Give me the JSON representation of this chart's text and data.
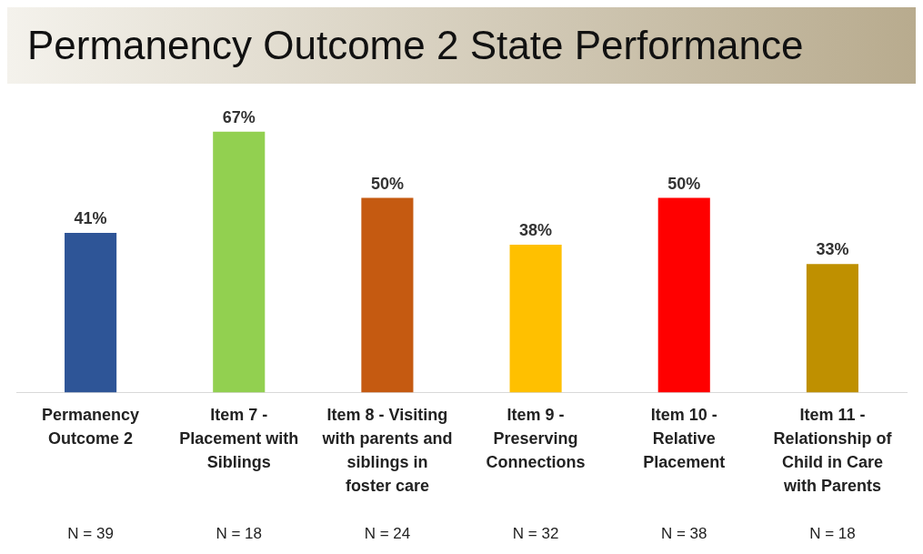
{
  "chart_data": {
    "type": "bar",
    "title": "Permanency Outcome 2 State Performance",
    "categories": [
      "Permanency Outcome 2",
      "Item 7 - Placement with Siblings",
      "Item 8 - Visiting with parents and siblings in foster care",
      "Item 9 - Preserving Connections",
      "Item 10 - Relative Placement",
      "Item 11 - Relationship of Child in Care with Parents"
    ],
    "values": [
      41,
      67,
      50,
      38,
      50,
      33
    ],
    "value_labels": [
      "41%",
      "67%",
      "50%",
      "38%",
      "50%",
      "33%"
    ],
    "colors": [
      "#2e5597",
      "#92d050",
      "#c55a11",
      "#ffc000",
      "#ff0000",
      "#bf9000"
    ],
    "tick_labels": "x",
    "grid": false,
    "legend": false,
    "annotations": [
      "N = 39",
      "N = 18",
      "N = 24",
      "N = 32",
      "N = 38",
      "N = 18"
    ]
  }
}
